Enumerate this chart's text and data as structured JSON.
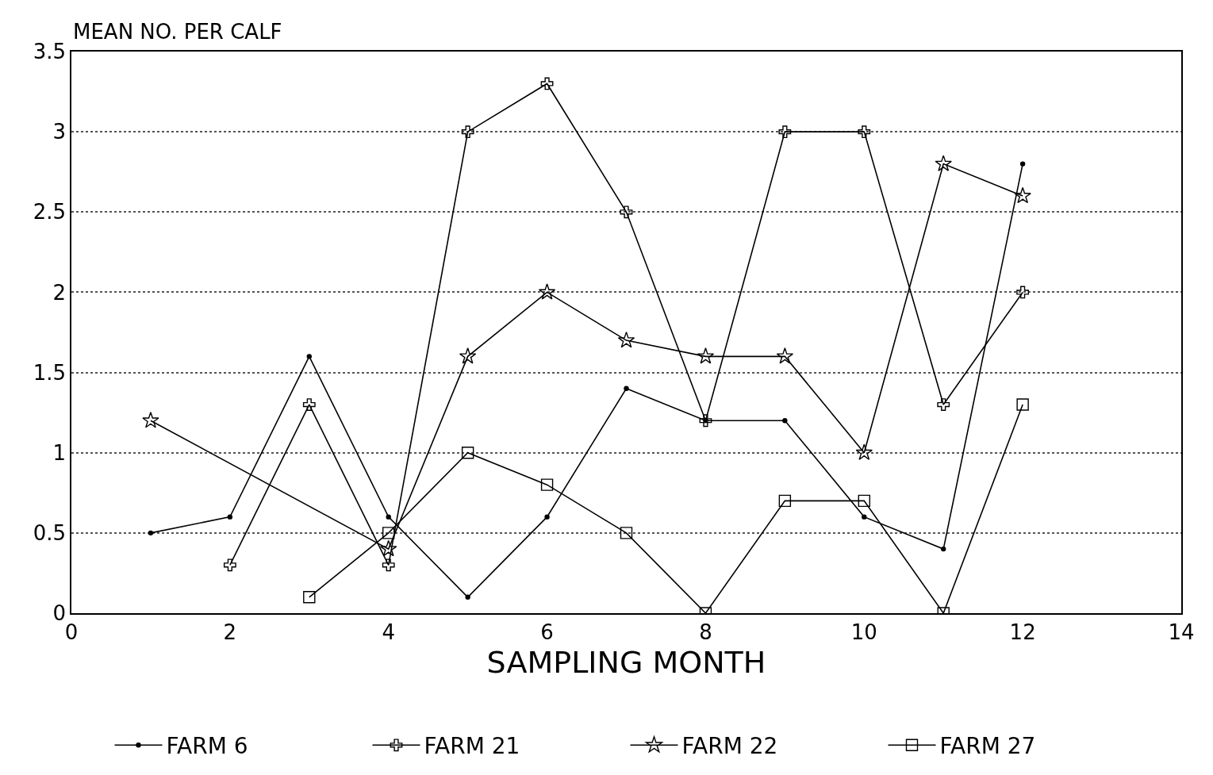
{
  "chart_data": {
    "type": "line",
    "ylabel": "MEAN NO. PER CALF",
    "xlabel": "SAMPLING MONTH",
    "xlim": [
      0,
      14
    ],
    "xticks": [
      0,
      2,
      4,
      6,
      8,
      10,
      12,
      14
    ],
    "ylim": [
      0,
      3.5
    ],
    "yticks": [
      0,
      0.5,
      1,
      1.5,
      2,
      2.5,
      3,
      3.5
    ],
    "grid": "y",
    "legend": "bottom",
    "line_style": "solid",
    "series": [
      {
        "name": "FARM 6",
        "color": "#000000",
        "marker": "circle",
        "x": [
          1,
          2,
          3,
          4,
          5,
          6,
          7,
          8,
          9,
          10,
          11,
          12
        ],
        "values": [
          0.5,
          0.6,
          1.6,
          0.6,
          0.1,
          0.6,
          1.4,
          1.2,
          1.2,
          0.6,
          0.4,
          2.8
        ]
      },
      {
        "name": "FARM 21",
        "color": "#000000",
        "marker": "cross",
        "x": [
          2,
          3,
          4,
          5,
          6,
          7,
          8,
          9,
          10,
          11,
          12
        ],
        "values": [
          0.3,
          1.3,
          0.3,
          3.0,
          3.3,
          2.5,
          1.2,
          3.0,
          3.0,
          1.3,
          2.0
        ]
      },
      {
        "name": "FARM 22",
        "color": "#000000",
        "marker": "star",
        "x": [
          1,
          4,
          5,
          6,
          7,
          8,
          9,
          10,
          11,
          12
        ],
        "values": [
          1.2,
          0.4,
          1.6,
          2.0,
          1.7,
          1.6,
          1.6,
          1.0,
          2.8,
          2.6
        ]
      },
      {
        "name": "FARM 27",
        "color": "#000000",
        "marker": "square",
        "x": [
          3,
          4,
          5,
          6,
          7,
          8,
          9,
          10,
          11,
          12
        ],
        "values": [
          0.1,
          0.5,
          1.0,
          0.8,
          0.5,
          0.0,
          0.7,
          0.7,
          0.0,
          1.3
        ]
      }
    ]
  }
}
